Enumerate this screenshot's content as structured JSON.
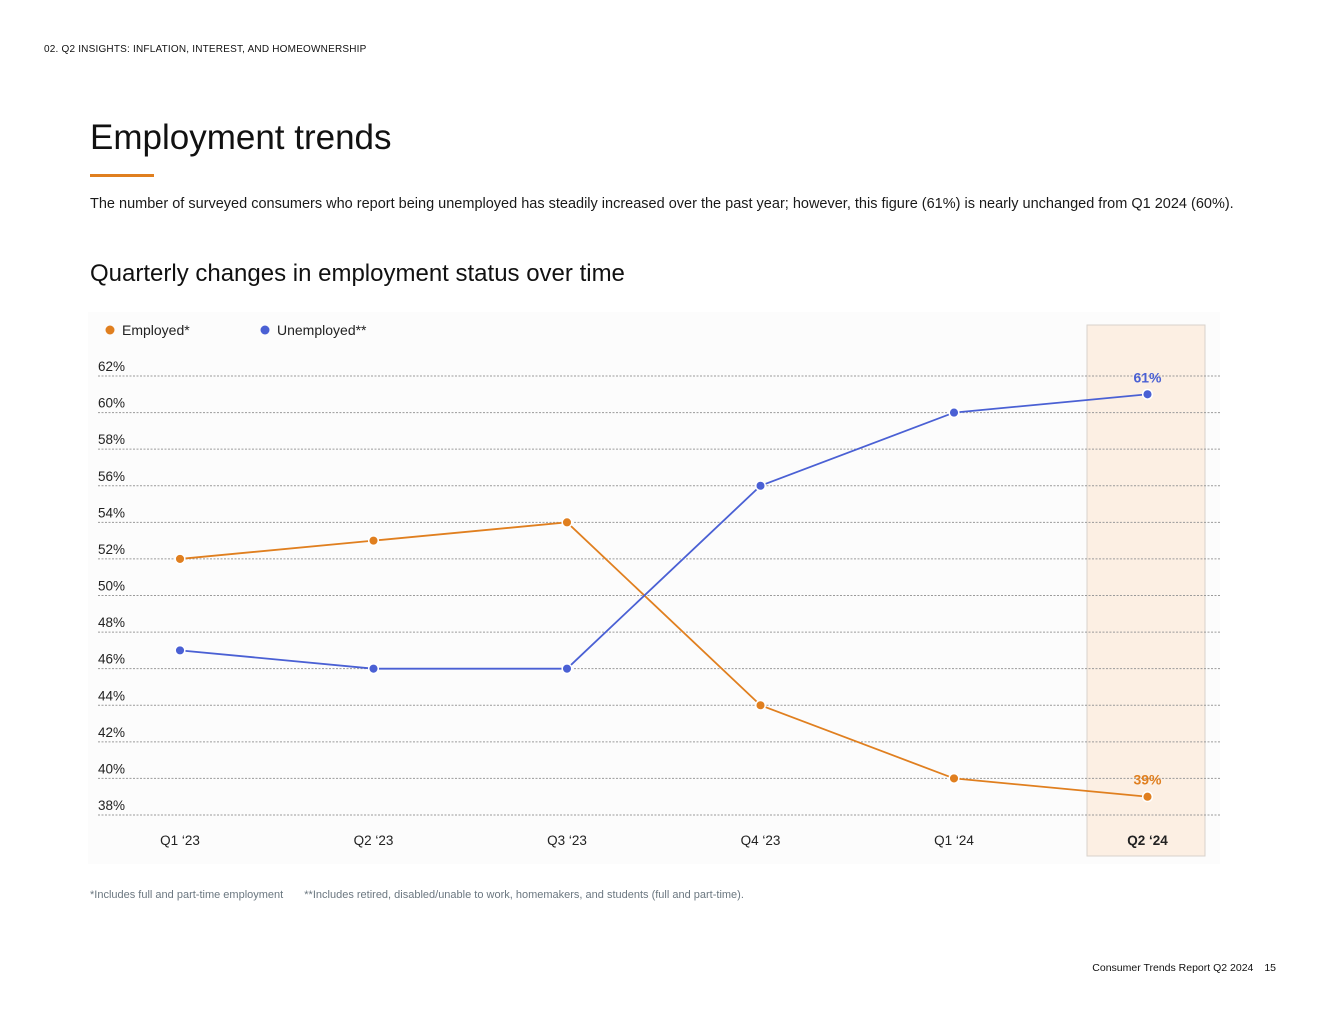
{
  "header": {
    "section_label": "02. Q2 INSIGHTS: INFLATION, INTEREST, AND HOMEOWNERSHIP"
  },
  "page": {
    "title": "Employment trends",
    "intro": "The number of surveyed consumers who report being unemployed has steadily increased over the past year; however, this figure (61%) is nearly unchanged from Q1 2024 (60%).",
    "chart_title": "Quarterly changes in employment status over time"
  },
  "colors": {
    "accent": "#e07f1f",
    "employed": "#e07f1f",
    "unemployed": "#4a60d4",
    "highlight_band": "#fcefe3"
  },
  "chart_data": {
    "type": "line",
    "title": "Quarterly changes in employment status over time",
    "categories": [
      "Q1 ‘23",
      "Q2 ‘23",
      "Q3 ‘23",
      "Q4 ‘23",
      "Q1 ‘24",
      "Q2 ‘24"
    ],
    "series": [
      {
        "name": "Employed*",
        "values": [
          52,
          53,
          54,
          44,
          40,
          39
        ]
      },
      {
        "name": "Unemployed**",
        "values": [
          47,
          46,
          46,
          56,
          60,
          61
        ]
      }
    ],
    "y_ticks": [
      62,
      60,
      58,
      56,
      54,
      52,
      50,
      48,
      46,
      44,
      42,
      40,
      38
    ],
    "tick_suffix": "%",
    "ylim": [
      38,
      62
    ],
    "highlight_category": "Q2 ‘24",
    "data_labels": {
      "Unemployed**": "61%",
      "Employed*": "39%"
    },
    "legend_position": "top-left",
    "grid": true,
    "xlabel": "",
    "ylabel": ""
  },
  "footnotes": {
    "employed": "*Includes full and part-time employment",
    "unemployed": "**Includes retired, disabled/unable to work, homemakers, and students (full and part-time)."
  },
  "footer": {
    "report": "Consumer Trends Report Q2 2024",
    "page_number": "15"
  }
}
